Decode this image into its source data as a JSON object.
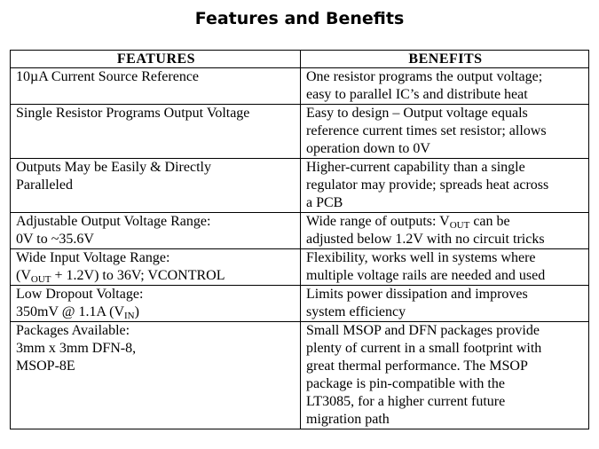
{
  "title": "Features and Benefits",
  "headers": {
    "features": "FEATURES",
    "benefits": "BENEFITS"
  },
  "rows": [
    {
      "feature": [
        [
          "10µA Current Source Reference"
        ]
      ],
      "benefit": [
        [
          "One resistor programs the output voltage;"
        ],
        [
          "easy to parallel IC’s and distribute heat"
        ]
      ]
    },
    {
      "feature": [
        [
          "Single Resistor Programs Output Voltage"
        ]
      ],
      "benefit": [
        [
          "Easy to design – Output voltage equals"
        ],
        [
          "reference current times set resistor; allows"
        ],
        [
          "operation down to 0V"
        ]
      ]
    },
    {
      "feature": [
        [
          "Outputs May be Easily & Directly"
        ],
        [
          "Paralleled"
        ]
      ],
      "benefit": [
        [
          "Higher-current capability than a single"
        ],
        [
          "regulator may provide; spreads heat across"
        ],
        [
          "a PCB"
        ]
      ]
    },
    {
      "feature": [
        [
          "Adjustable Output Voltage Range:"
        ],
        [
          "0V to ~35.6V"
        ]
      ],
      "benefit": [
        [
          "Wide range of outputs: V",
          "OUT",
          " can be"
        ],
        [
          "adjusted below 1.2V with no circuit tricks"
        ]
      ]
    },
    {
      "feature": [
        [
          "Wide Input Voltage Range:"
        ],
        [
          "(V",
          "OUT",
          " + 1.2V) to 36V; VCONTROL"
        ]
      ],
      "benefit": [
        [
          "Flexibility, works well in systems where"
        ],
        [
          "multiple voltage rails are needed and used"
        ]
      ]
    },
    {
      "feature": [
        [
          "Low Dropout Voltage:"
        ],
        [
          "350mV @ 1.1A (V",
          "IN",
          ")"
        ]
      ],
      "benefit": [
        [
          "Limits power dissipation and improves"
        ],
        [
          "system efficiency"
        ]
      ]
    },
    {
      "feature": [
        [
          "Packages Available:"
        ],
        [
          "3mm x 3mm DFN-8,"
        ],
        [
          "MSOP-8E"
        ]
      ],
      "benefit": [
        [
          "Small MSOP and DFN packages provide"
        ],
        [
          "plenty of current in a small footprint with"
        ],
        [
          "great thermal performance. The MSOP"
        ],
        [
          "package is pin-compatible with the"
        ],
        [
          "LT3085, for a higher current future"
        ],
        [
          "migration path"
        ]
      ]
    }
  ]
}
